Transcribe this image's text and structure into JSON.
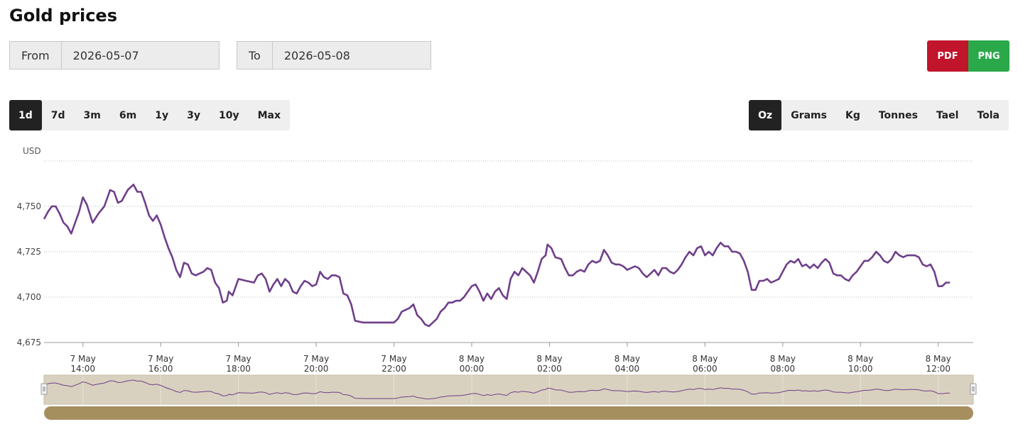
{
  "header": {
    "title": "Gold prices"
  },
  "range": {
    "from_label": "From",
    "from_value": "2026-05-07",
    "to_label": "To",
    "to_value": "2026-05-08"
  },
  "export": {
    "pdf_label": "PDF",
    "png_label": "PNG"
  },
  "periods": [
    "1d",
    "7d",
    "3m",
    "6m",
    "1y",
    "3y",
    "10y",
    "Max"
  ],
  "active_period": "1d",
  "units": [
    "Oz",
    "Grams",
    "Kg",
    "Tonnes",
    "Tael",
    "Tola"
  ],
  "active_unit": "Oz",
  "colors": {
    "line": "#6f3f8a",
    "navigator_bg": "#d9d1bf",
    "scrollbar": "#a68f5f"
  },
  "chart_data": {
    "type": "line",
    "ylabel": "USD",
    "ylim": [
      4675,
      4775
    ],
    "yticks": [
      4675,
      4700,
      4725,
      4750
    ],
    "ytick_labels": [
      "4,675",
      "4,700",
      "4,725",
      "4,750"
    ],
    "x_unit": "hours since 7 May 13:00",
    "xlim": [
      0,
      23.9
    ],
    "xticks": [
      1,
      3,
      5,
      7,
      9,
      11,
      13,
      15,
      17,
      19,
      21,
      23
    ],
    "xtick_labels": [
      [
        "7 May",
        "14:00"
      ],
      [
        "7 May",
        "16:00"
      ],
      [
        "7 May",
        "18:00"
      ],
      [
        "7 May",
        "20:00"
      ],
      [
        "7 May",
        "22:00"
      ],
      [
        "8 May",
        "00:00"
      ],
      [
        "8 May",
        "02:00"
      ],
      [
        "8 May",
        "04:00"
      ],
      [
        "8 May",
        "06:00"
      ],
      [
        "8 May",
        "08:00"
      ],
      [
        "8 May",
        "10:00"
      ],
      [
        "8 May",
        "12:00"
      ]
    ],
    "grid": "horizontal",
    "series": [
      {
        "name": "",
        "points": [
          [
            0.0,
            4743
          ],
          [
            0.1,
            4747
          ],
          [
            0.2,
            4750
          ],
          [
            0.3,
            4750
          ],
          [
            0.4,
            4746
          ],
          [
            0.5,
            4741
          ],
          [
            0.6,
            4739
          ],
          [
            0.7,
            4735
          ],
          [
            0.8,
            4741
          ],
          [
            0.9,
            4747
          ],
          [
            1.0,
            4755
          ],
          [
            1.1,
            4751
          ],
          [
            1.25,
            4741
          ],
          [
            1.4,
            4746
          ],
          [
            1.55,
            4750
          ],
          [
            1.7,
            4759
          ],
          [
            1.8,
            4758
          ],
          [
            1.9,
            4752
          ],
          [
            2.0,
            4753
          ],
          [
            2.15,
            4759
          ],
          [
            2.3,
            4762
          ],
          [
            2.4,
            4758
          ],
          [
            2.5,
            4758
          ],
          [
            2.6,
            4752
          ],
          [
            2.7,
            4745
          ],
          [
            2.8,
            4742
          ],
          [
            2.9,
            4745
          ],
          [
            3.0,
            4740
          ],
          [
            3.1,
            4733
          ],
          [
            3.2,
            4727
          ],
          [
            3.3,
            4722
          ],
          [
            3.4,
            4715
          ],
          [
            3.5,
            4711
          ],
          [
            3.6,
            4719
          ],
          [
            3.7,
            4718
          ],
          [
            3.8,
            4713
          ],
          [
            3.9,
            4712
          ],
          [
            4.0,
            4713
          ],
          [
            4.1,
            4714
          ],
          [
            4.2,
            4716
          ],
          [
            4.3,
            4715
          ],
          [
            4.4,
            4708
          ],
          [
            4.5,
            4705
          ],
          [
            4.6,
            4697
          ],
          [
            4.7,
            4698
          ],
          [
            4.75,
            4703
          ],
          [
            4.85,
            4701
          ],
          [
            5.0,
            4710
          ],
          [
            5.2,
            4709
          ],
          [
            5.4,
            4708
          ],
          [
            5.5,
            4712
          ],
          [
            5.6,
            4713
          ],
          [
            5.7,
            4710
          ],
          [
            5.8,
            4703
          ],
          [
            5.9,
            4707
          ],
          [
            6.0,
            4710
          ],
          [
            6.1,
            4706
          ],
          [
            6.2,
            4710
          ],
          [
            6.3,
            4708
          ],
          [
            6.4,
            4703
          ],
          [
            6.5,
            4702
          ],
          [
            6.6,
            4706
          ],
          [
            6.7,
            4709
          ],
          [
            6.8,
            4708
          ],
          [
            6.9,
            4706
          ],
          [
            7.0,
            4707
          ],
          [
            7.1,
            4714
          ],
          [
            7.2,
            4711
          ],
          [
            7.3,
            4710
          ],
          [
            7.4,
            4712
          ],
          [
            7.5,
            4712
          ],
          [
            7.6,
            4711
          ],
          [
            7.7,
            4702
          ],
          [
            7.8,
            4701
          ],
          [
            7.9,
            4696
          ],
          [
            8.0,
            4687
          ],
          [
            8.2,
            4686
          ],
          [
            8.6,
            4686
          ],
          [
            9.0,
            4686
          ],
          [
            9.1,
            4688
          ],
          [
            9.2,
            4692
          ],
          [
            9.3,
            4693
          ],
          [
            9.4,
            4694
          ],
          [
            9.5,
            4696
          ],
          [
            9.6,
            4690
          ],
          [
            9.7,
            4688
          ],
          [
            9.8,
            4685
          ],
          [
            9.9,
            4684
          ],
          [
            10.0,
            4686
          ],
          [
            10.1,
            4688
          ],
          [
            10.2,
            4692
          ],
          [
            10.3,
            4694
          ],
          [
            10.4,
            4697
          ],
          [
            10.5,
            4697
          ],
          [
            10.6,
            4698
          ],
          [
            10.7,
            4698
          ],
          [
            10.8,
            4700
          ],
          [
            10.9,
            4703
          ],
          [
            11.0,
            4706
          ],
          [
            11.1,
            4707
          ],
          [
            11.2,
            4703
          ],
          [
            11.3,
            4698
          ],
          [
            11.4,
            4702
          ],
          [
            11.5,
            4699
          ],
          [
            11.6,
            4703
          ],
          [
            11.7,
            4705
          ],
          [
            11.8,
            4701
          ],
          [
            11.9,
            4699
          ],
          [
            12.0,
            4710
          ],
          [
            12.1,
            4714
          ],
          [
            12.2,
            4712
          ],
          [
            12.3,
            4716
          ],
          [
            12.4,
            4714
          ],
          [
            12.5,
            4712
          ],
          [
            12.6,
            4708
          ],
          [
            12.7,
            4714
          ],
          [
            12.8,
            4721
          ],
          [
            12.9,
            4723
          ],
          [
            12.95,
            4729
          ],
          [
            13.05,
            4727
          ],
          [
            13.15,
            4722
          ],
          [
            13.3,
            4721
          ],
          [
            13.4,
            4716
          ],
          [
            13.5,
            4712
          ],
          [
            13.6,
            4712
          ],
          [
            13.7,
            4714
          ],
          [
            13.8,
            4715
          ],
          [
            13.9,
            4714
          ],
          [
            14.0,
            4718
          ],
          [
            14.1,
            4720
          ],
          [
            14.2,
            4719
          ],
          [
            14.3,
            4720
          ],
          [
            14.4,
            4726
          ],
          [
            14.5,
            4723
          ],
          [
            14.6,
            4719
          ],
          [
            14.7,
            4718
          ],
          [
            14.8,
            4718
          ],
          [
            14.9,
            4717
          ],
          [
            15.0,
            4715
          ],
          [
            15.1,
            4716
          ],
          [
            15.2,
            4717
          ],
          [
            15.3,
            4716
          ],
          [
            15.4,
            4713
          ],
          [
            15.5,
            4711
          ],
          [
            15.6,
            4713
          ],
          [
            15.7,
            4715
          ],
          [
            15.8,
            4712
          ],
          [
            15.9,
            4716
          ],
          [
            16.0,
            4716
          ],
          [
            16.1,
            4714
          ],
          [
            16.2,
            4713
          ],
          [
            16.3,
            4715
          ],
          [
            16.4,
            4718
          ],
          [
            16.5,
            4722
          ],
          [
            16.6,
            4725
          ],
          [
            16.7,
            4723
          ],
          [
            16.8,
            4727
          ],
          [
            16.9,
            4728
          ],
          [
            17.0,
            4723
          ],
          [
            17.1,
            4725
          ],
          [
            17.2,
            4723
          ],
          [
            17.3,
            4727
          ],
          [
            17.4,
            4730
          ],
          [
            17.5,
            4728
          ],
          [
            17.6,
            4728
          ],
          [
            17.7,
            4725
          ],
          [
            17.8,
            4725
          ],
          [
            17.9,
            4724
          ],
          [
            18.0,
            4720
          ],
          [
            18.1,
            4714
          ],
          [
            18.2,
            4704
          ],
          [
            18.3,
            4704
          ],
          [
            18.4,
            4709
          ],
          [
            18.5,
            4709
          ],
          [
            18.6,
            4710
          ],
          [
            18.7,
            4708
          ],
          [
            18.8,
            4709
          ],
          [
            18.9,
            4710
          ],
          [
            19.0,
            4714
          ],
          [
            19.1,
            4718
          ],
          [
            19.2,
            4720
          ],
          [
            19.3,
            4719
          ],
          [
            19.4,
            4721
          ],
          [
            19.5,
            4717
          ],
          [
            19.6,
            4718
          ],
          [
            19.7,
            4716
          ],
          [
            19.8,
            4718
          ],
          [
            19.9,
            4716
          ],
          [
            20.0,
            4719
          ],
          [
            20.1,
            4721
          ],
          [
            20.2,
            4719
          ],
          [
            20.3,
            4713
          ],
          [
            20.4,
            4712
          ],
          [
            20.5,
            4712
          ],
          [
            20.6,
            4710
          ],
          [
            20.7,
            4709
          ],
          [
            20.8,
            4712
          ],
          [
            20.9,
            4714
          ],
          [
            21.0,
            4717
          ],
          [
            21.1,
            4720
          ],
          [
            21.2,
            4720
          ],
          [
            21.3,
            4722
          ],
          [
            21.4,
            4725
          ],
          [
            21.5,
            4723
          ],
          [
            21.6,
            4720
          ],
          [
            21.7,
            4719
          ],
          [
            21.8,
            4721
          ],
          [
            21.9,
            4725
          ],
          [
            22.0,
            4723
          ],
          [
            22.1,
            4722
          ],
          [
            22.2,
            4723
          ],
          [
            22.3,
            4723
          ],
          [
            22.4,
            4723
          ],
          [
            22.5,
            4722
          ],
          [
            22.6,
            4718
          ],
          [
            22.7,
            4717
          ],
          [
            22.8,
            4718
          ],
          [
            22.9,
            4714
          ],
          [
            23.0,
            4706
          ],
          [
            23.1,
            4706
          ],
          [
            23.2,
            4708
          ],
          [
            23.3,
            4708
          ]
        ]
      }
    ]
  }
}
